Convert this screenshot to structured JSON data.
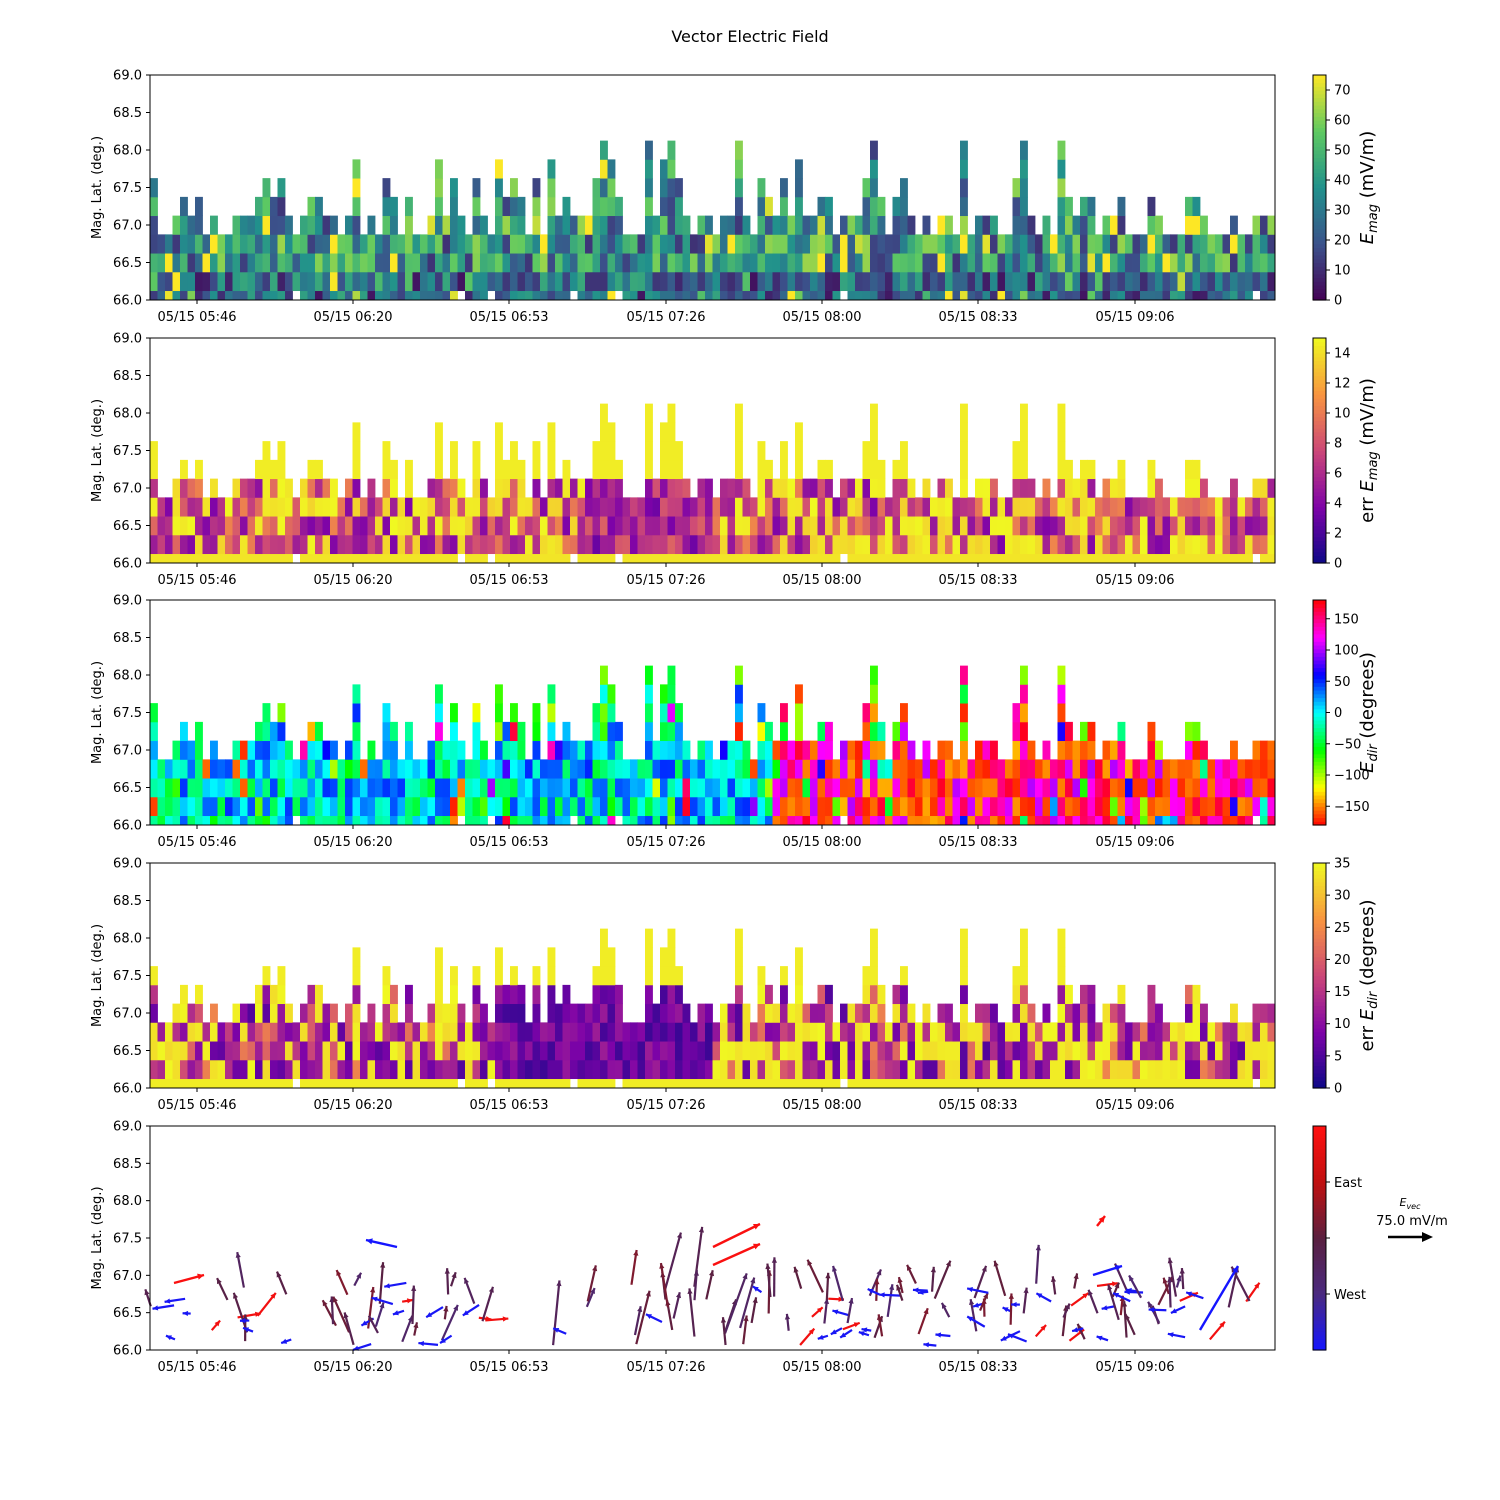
{
  "figure_title": "Vector Electric Field",
  "colors": {
    "viridis": [
      "#440154",
      "#3b528b",
      "#21918c",
      "#5ec962",
      "#fde725"
    ],
    "plasma": [
      "#0d0887",
      "#7e03a8",
      "#cc4778",
      "#f89540",
      "#f0f921"
    ],
    "hsv_dir": [
      "#ff0000",
      "#ffff00",
      "#00ff00",
      "#00ffff",
      "#0000ff",
      "#ff00ff",
      "#ff0000"
    ],
    "vec_cmap": [
      "#1515ff",
      "#4a2a80",
      "#5a2040",
      "#c01010",
      "#ff1010"
    ],
    "east_arrow": "#e01a10",
    "west_arrow": "#1434e0"
  },
  "time_ticks": [
    "05/15 05:46",
    "05/15 06:20",
    "05/15 06:53",
    "05/15 07:26",
    "05/15 08:00",
    "05/15 08:33",
    "05/15 09:06"
  ],
  "chart_data": [
    {
      "type": "heatmap",
      "panel": "E_mag",
      "ylabel": "Mag. Lat. (deg.)",
      "ylim": [
        66.0,
        69.0
      ],
      "yticks": [
        "66.0",
        "66.5",
        "67.0",
        "67.5",
        "68.0",
        "68.5",
        "69.0"
      ],
      "xticks": [
        "05/15 05:46",
        "05/15 06:20",
        "05/15 06:53",
        "05/15 07:26",
        "05/15 08:00",
        "05/15 08:33",
        "05/15 09:06"
      ],
      "colorbar": {
        "label": "E_mag (mV/m)",
        "range": [
          0,
          75
        ],
        "ticks": [
          "0",
          "10",
          "20",
          "30",
          "40",
          "50",
          "60",
          "70"
        ],
        "cmap": "viridis"
      },
      "seed": 11
    },
    {
      "type": "heatmap",
      "panel": "err E_mag",
      "ylabel": "Mag. Lat. (deg.)",
      "ylim": [
        66.0,
        69.0
      ],
      "yticks": [
        "66.0",
        "66.5",
        "67.0",
        "67.5",
        "68.0",
        "68.5",
        "69.0"
      ],
      "xticks": [
        "05/15 05:46",
        "05/15 06:20",
        "05/15 06:53",
        "05/15 07:26",
        "05/15 08:00",
        "05/15 08:33",
        "05/15 09:06"
      ],
      "colorbar": {
        "label": "err E_mag (mV/m)",
        "range": [
          0,
          15
        ],
        "ticks": [
          "0",
          "2",
          "4",
          "6",
          "8",
          "10",
          "12",
          "14"
        ],
        "cmap": "plasma"
      },
      "seed": 23
    },
    {
      "type": "heatmap",
      "panel": "E_dir",
      "ylabel": "Mag. Lat. (deg.)",
      "ylim": [
        66.0,
        69.0
      ],
      "yticks": [
        "66.0",
        "66.5",
        "67.0",
        "67.5",
        "68.0",
        "68.5",
        "69.0"
      ],
      "xticks": [
        "05/15 05:46",
        "05/15 06:20",
        "05/15 06:53",
        "05/15 07:26",
        "05/15 08:00",
        "05/15 08:33",
        "05/15 09:06"
      ],
      "colorbar": {
        "label": "E_dir (degrees)",
        "range": [
          -180,
          180
        ],
        "ticks": [
          "−150",
          "−100",
          "−50",
          "0",
          "50",
          "100",
          "150"
        ],
        "tick_values": [
          -150,
          -100,
          -50,
          0,
          50,
          100,
          150
        ],
        "cmap": "hsv_dir"
      },
      "seed": 37
    },
    {
      "type": "heatmap",
      "panel": "err E_dir",
      "ylabel": "Mag. Lat. (deg.)",
      "ylim": [
        66.0,
        69.0
      ],
      "yticks": [
        "66.0",
        "66.5",
        "67.0",
        "67.5",
        "68.0",
        "68.5",
        "69.0"
      ],
      "xticks": [
        "05/15 05:46",
        "05/15 06:20",
        "05/15 06:53",
        "05/15 07:26",
        "05/15 08:00",
        "05/15 08:33",
        "05/15 09:06"
      ],
      "colorbar": {
        "label": "err E_dir (degrees)",
        "range": [
          0,
          35
        ],
        "ticks": [
          "0",
          "5",
          "10",
          "15",
          "20",
          "25",
          "30",
          "35"
        ],
        "cmap": "plasma"
      },
      "seed": 41
    },
    {
      "type": "scatter",
      "panel": "E_vec",
      "ylabel": "Mag. Lat. (deg.)",
      "ylim": [
        66.0,
        69.0
      ],
      "yticks": [
        "66.0",
        "66.5",
        "67.0",
        "67.5",
        "68.0",
        "68.5",
        "69.0"
      ],
      "xticks": [
        "05/15 05:46",
        "05/15 06:20",
        "05/15 06:53",
        "05/15 07:26",
        "05/15 08:00",
        "05/15 08:33",
        "05/15 09:06"
      ],
      "colorbar": {
        "ticks": [
          "East",
          "West"
        ],
        "cmap": "vec_cmap"
      },
      "reference": {
        "label": "E_vec",
        "value": "75.0 mV/m"
      },
      "seed": 53
    }
  ]
}
